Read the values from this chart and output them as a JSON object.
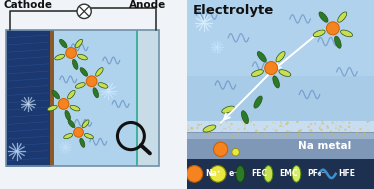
{
  "fig_width": 3.74,
  "fig_height": 1.89,
  "dpi": 100,
  "na_ion_color": "#f5831f",
  "electron_color": "#e8e840",
  "fec_color": "#2a7a2a",
  "emc_color": "#c8e050",
  "pf6_color": "#d8ec60",
  "hfe_color": "#4090d0",
  "cathode_label": "Cathode",
  "anode_label": "Anode",
  "electrolyte_label": "Electrolyte",
  "na_metal_label": "Na metal",
  "legend_labels": [
    "Na⁺",
    "e⁻",
    "FEC",
    "EMC",
    "PF₆⁻",
    "HFE"
  ]
}
